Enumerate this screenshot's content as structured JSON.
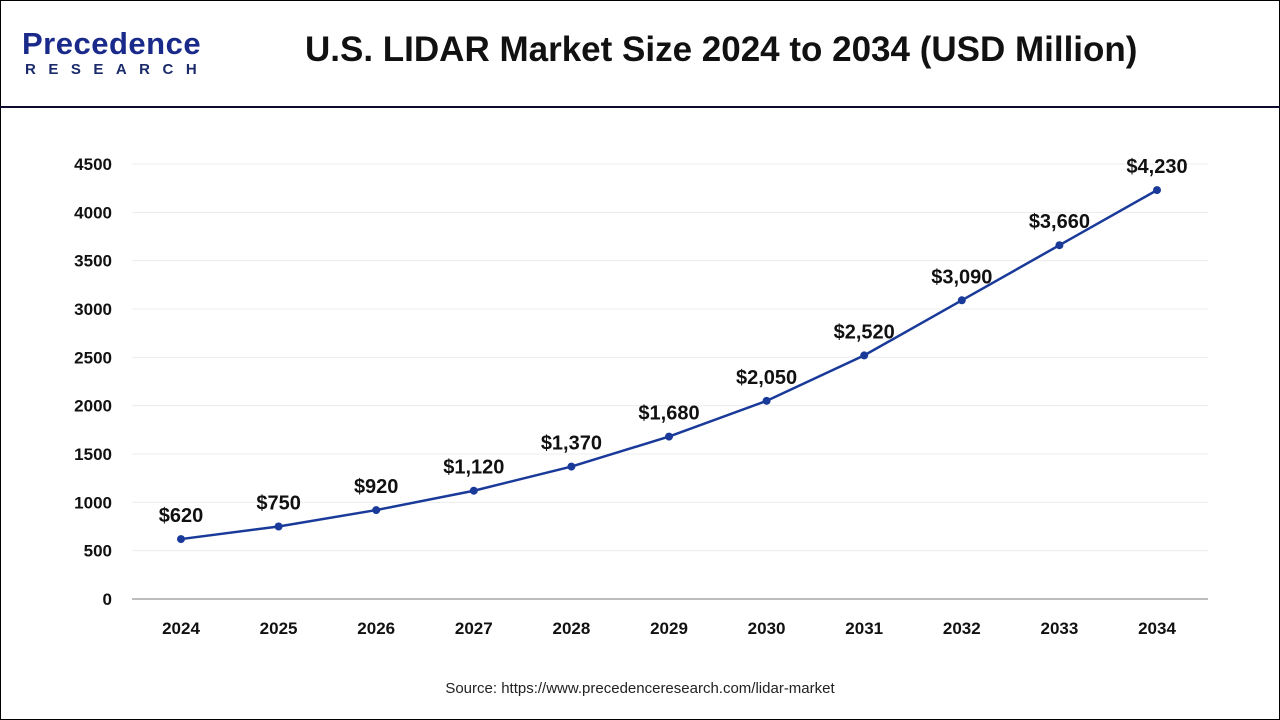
{
  "header": {
    "logo_main": "Precedence",
    "logo_sub": "RESEARCH",
    "title": "U.S. LIDAR Market Size 2024 to 2034 (USD Million)"
  },
  "chart_data": {
    "type": "line",
    "title": "U.S. LIDAR Market Size 2024 to 2034 (USD Million)",
    "xlabel": "",
    "ylabel": "",
    "categories": [
      "2024",
      "2025",
      "2026",
      "2027",
      "2028",
      "2029",
      "2030",
      "2031",
      "2032",
      "2033",
      "2034"
    ],
    "values": [
      620,
      750,
      920,
      1120,
      1370,
      1680,
      2050,
      2520,
      3090,
      3660,
      4230
    ],
    "data_labels": [
      "$620",
      "$750",
      "$920",
      "$1,120",
      "$1,370",
      "$1,680",
      "$2,050",
      "$2,520",
      "$3,090",
      "$3,660",
      "$4,230"
    ],
    "ylim": [
      0,
      4500
    ],
    "yticks": [
      "0",
      "500",
      "1000",
      "1500",
      "2000",
      "2500",
      "3000",
      "3500",
      "4000",
      "4500"
    ],
    "grid": true,
    "legend": "none",
    "line_color": "#1a3a9a"
  },
  "footer": {
    "source": "Source: https://www.precedenceresearch.com/lidar-market"
  }
}
